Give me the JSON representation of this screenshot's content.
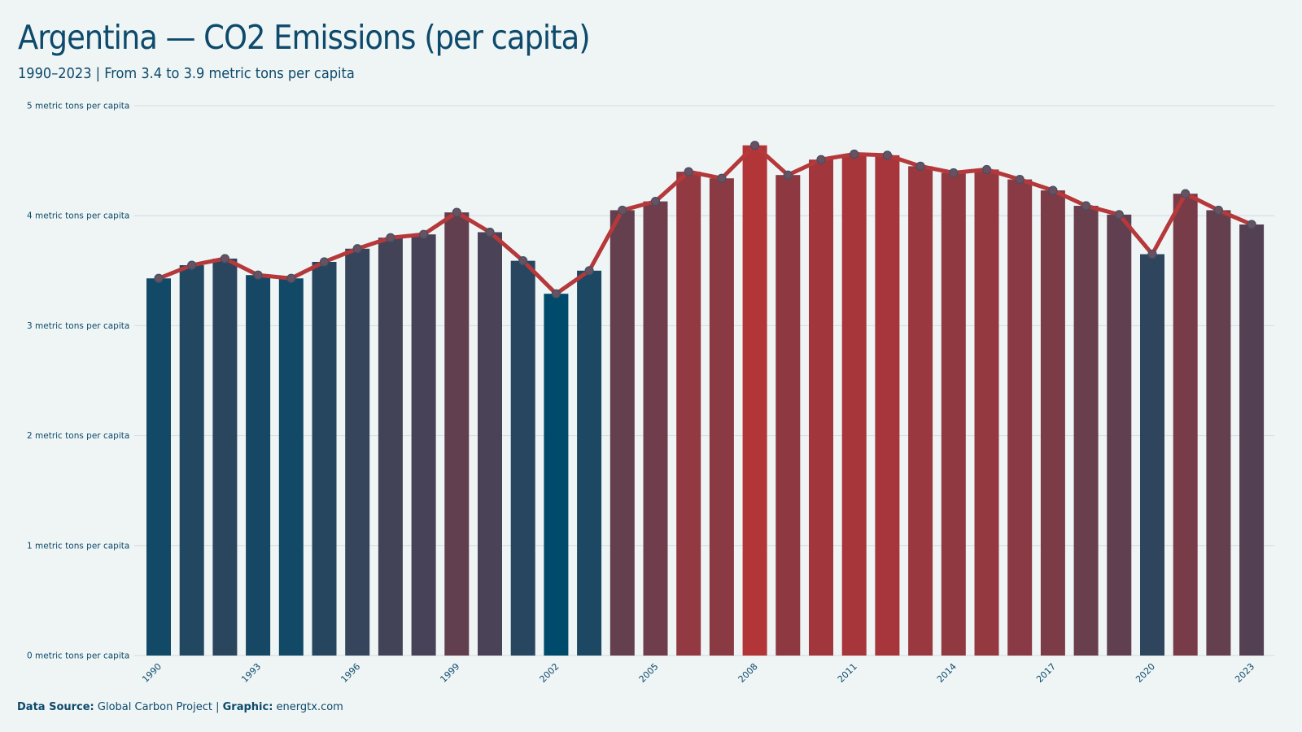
{
  "header": {
    "title": "Argentina — CO2 Emissions (per capita)",
    "subtitle": "1990–2023 | From 3.4 to 3.9 metric tons per capita"
  },
  "footer": {
    "source_label": "Data Source:",
    "source_value": "Global Carbon Project",
    "separator": "|",
    "graphic_label": "Graphic:",
    "graphic_value": "energtx.com"
  },
  "colors": {
    "low": "#004b6b",
    "high": "#b23538",
    "line": "#b5383b",
    "marker_fill": "#6b5060",
    "grid": "#d4dcde",
    "background": "#eff5f5"
  },
  "chart_data": {
    "type": "bar",
    "categories": [
      "1990",
      "1991",
      "1992",
      "1993",
      "1994",
      "1995",
      "1996",
      "1997",
      "1998",
      "1999",
      "2000",
      "2001",
      "2002",
      "2003",
      "2004",
      "2005",
      "2006",
      "2007",
      "2008",
      "2009",
      "2010",
      "2011",
      "2012",
      "2013",
      "2014",
      "2015",
      "2016",
      "2017",
      "2018",
      "2019",
      "2020",
      "2021",
      "2022",
      "2023"
    ],
    "values": [
      3.43,
      3.55,
      3.61,
      3.46,
      3.43,
      3.58,
      3.7,
      3.8,
      3.83,
      4.03,
      3.85,
      3.59,
      3.29,
      3.5,
      4.05,
      4.13,
      4.4,
      4.34,
      4.64,
      4.37,
      4.51,
      4.56,
      4.55,
      4.45,
      4.39,
      4.42,
      4.33,
      4.23,
      4.09,
      4.01,
      3.65,
      4.2,
      4.05,
      3.92
    ],
    "x_tick_labels": [
      "1990",
      "1993",
      "1996",
      "1999",
      "2002",
      "2005",
      "2008",
      "2011",
      "2014",
      "2017",
      "2020",
      "2023"
    ],
    "y_ticks": [
      0,
      1,
      2,
      3,
      4,
      5
    ],
    "y_tick_labels": [
      "0 metric tons per capita",
      "1 metric tons per capita",
      "2 metric tons per capita",
      "3 metric tons per capita",
      "4 metric tons per capita",
      "5 metric tons per capita"
    ],
    "ylim": [
      0,
      5
    ],
    "overlay": "line with markers",
    "grid": true
  }
}
